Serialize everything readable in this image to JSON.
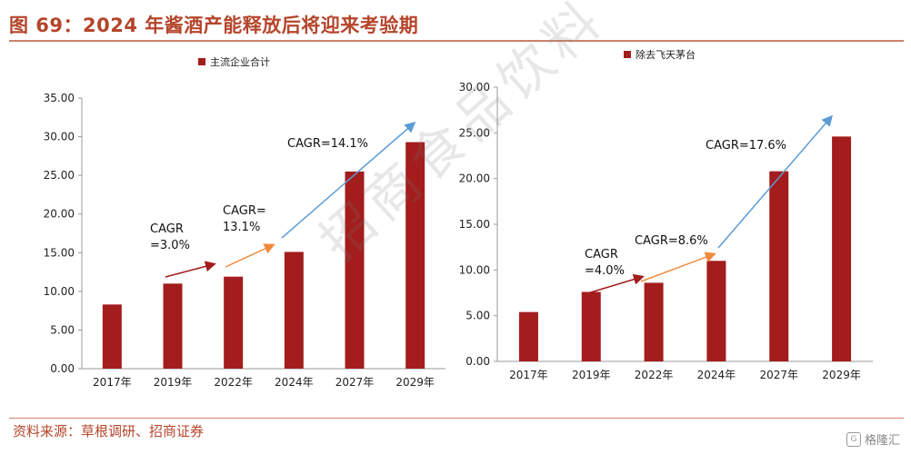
{
  "header": {
    "title": "图 69：2024 年酱酒产能释放后将迎来考验期"
  },
  "footer": {
    "source": "资料来源：草根调研、招商证券",
    "logo_text": "格隆汇",
    "logo_glyph": "G"
  },
  "watermark": "招商食品饮料",
  "colors": {
    "bar": "#a31d1d",
    "arrow_red": "#a31d1d",
    "arrow_orange": "#f08a3c",
    "arrow_blue": "#5b9bd5",
    "title": "#b5452b"
  },
  "chart_data": [
    {
      "type": "bar",
      "legend": "主流企业合计",
      "categories": [
        "2017年",
        "2019年",
        "2022年",
        "2024年",
        "2027年",
        "2029年"
      ],
      "values": [
        8.3,
        11.0,
        11.9,
        15.1,
        25.5,
        29.3
      ],
      "yticks": [
        "0.00",
        "5.00",
        "10.00",
        "15.00",
        "20.00",
        "25.00",
        "30.00",
        "35.00"
      ],
      "ylim": [
        0,
        35
      ],
      "annotations": [
        {
          "lines": [
            "CAGR",
            "=3.0%"
          ],
          "arrow": "red"
        },
        {
          "lines": [
            "CAGR=",
            "13.1%"
          ],
          "arrow": "orange"
        },
        {
          "lines": [
            "CAGR=14.1%"
          ],
          "arrow": "blue"
        }
      ]
    },
    {
      "type": "bar",
      "legend": "除去飞天茅台",
      "categories": [
        "2017年",
        "2019年",
        "2022年",
        "2024年",
        "2027年",
        "2029年"
      ],
      "values": [
        5.4,
        7.6,
        8.6,
        11.0,
        20.8,
        24.6
      ],
      "yticks": [
        "0.00",
        "5.00",
        "10.00",
        "15.00",
        "20.00",
        "25.00",
        "30.00"
      ],
      "ylim": [
        0,
        30
      ],
      "annotations": [
        {
          "lines": [
            "CAGR",
            "=4.0%"
          ],
          "arrow": "red"
        },
        {
          "lines": [
            "CAGR=8.6%"
          ],
          "arrow": "orange"
        },
        {
          "lines": [
            "CAGR=17.6%"
          ],
          "arrow": "blue"
        }
      ]
    }
  ]
}
